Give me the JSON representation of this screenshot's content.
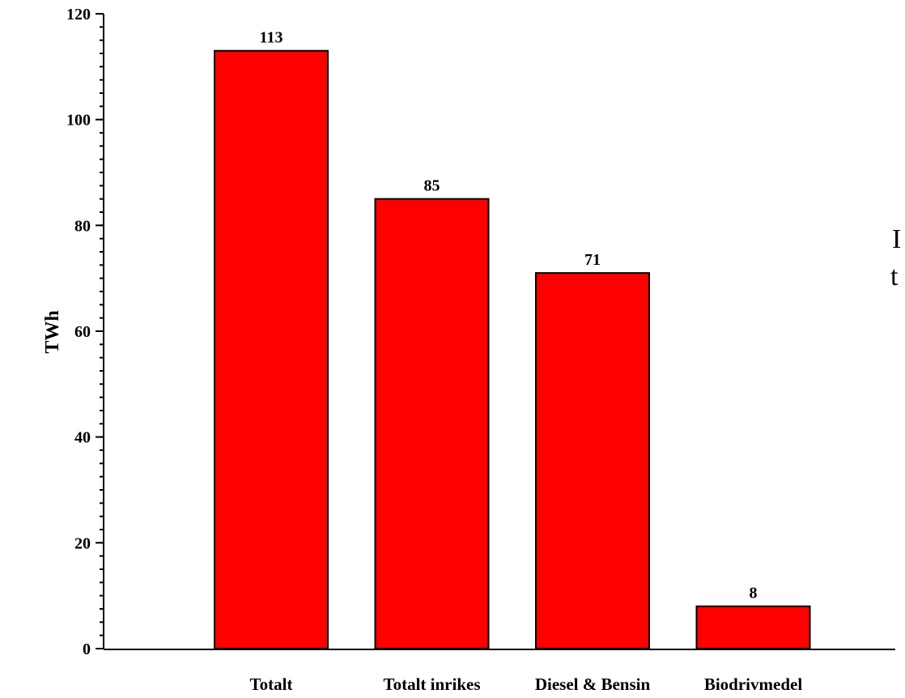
{
  "chart_data": {
    "type": "bar",
    "title": "",
    "xlabel": "",
    "ylabel": "TWh",
    "categories": [
      "Totalt",
      "Totalt inrikes",
      "Diesel & Bensin",
      "Biodrivmedel"
    ],
    "values": [
      113,
      85,
      71,
      8
    ],
    "data_labels": [
      "113",
      "85",
      "71",
      "8"
    ],
    "ylim": [
      0,
      120
    ],
    "y_ticks": [
      0,
      20,
      40,
      60,
      80,
      100,
      120
    ],
    "grid": false,
    "bar_color": "#ff0000",
    "bar_edge_color": "#000000",
    "clipped_text": [
      "I",
      "t"
    ]
  }
}
